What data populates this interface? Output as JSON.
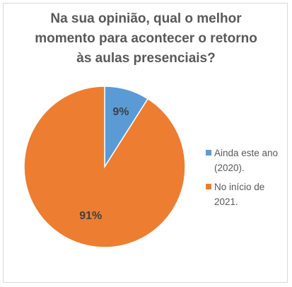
{
  "chart_data": {
    "type": "pie",
    "title_lines": [
      "Na sua opinião, qual o melhor",
      "momento para acontecer o retorno",
      "às aulas presenciais?"
    ],
    "slices": [
      {
        "label_lines": [
          "Ainda este ano",
          "(2020)."
        ],
        "value": 9,
        "value_label": "9%",
        "color": "#5b9bd5"
      },
      {
        "label_lines": [
          "No início de",
          "2021."
        ],
        "value": 91,
        "value_label": "91%",
        "color": "#ed7d31"
      }
    ],
    "legend_position": "right"
  }
}
